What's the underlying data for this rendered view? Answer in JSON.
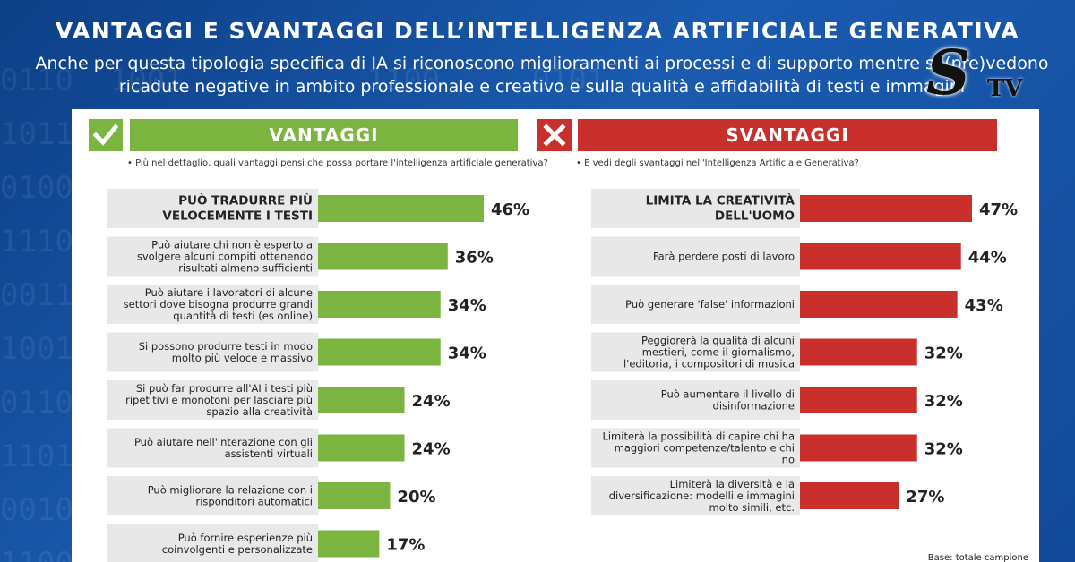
{
  "title": "VANTAGGI E SVANTAGGI DELL’INTELLIGENZA ARTIFICIALE GENERATIVA",
  "subtitle": "Anche per questa tipologia specifica di IA si riconoscono miglioramenti ai processi e di supporto mentre si (pre)vedono ricadute negative in ambito professionale e creativo e sulla qualità e affidabilità di testi e immagini",
  "logo_text": "STV",
  "colors": {
    "advantage": "#7cb440",
    "disadvantage": "#c9302c",
    "label_bg": "#e8e8e8"
  },
  "advantages": {
    "header": "VANTAGGI",
    "question": "Più nel dettaglio, quali vantaggi pensi che possa portare l'intelligenza artificiale generativa?"
  },
  "disadvantages": {
    "header": "SVANTAGGI",
    "question": "E vedi degli svantaggi nell'Intelligenza Artificiale Generativa?"
  },
  "footnote": "Base: totale campione",
  "chart_data": [
    {
      "type": "bar",
      "orientation": "horizontal",
      "title": "VANTAGGI",
      "categories": [
        [
          "PUÒ TRADURRE PIÙ",
          "VELOCEMENTE I TESTI"
        ],
        [
          "Può aiutare chi non è esperto a",
          "svolgere alcuni compiti ottenendo",
          "risultati almeno sufficienti"
        ],
        [
          "Può aiutare i lavoratori di alcune",
          "settori dove bisogna produrre grandi",
          "quantità di testi (es online)"
        ],
        [
          "Si possono produrre testi in modo",
          "molto più veloce e massivo"
        ],
        [
          "Si può far produrre all'AI i testi più",
          "ripetitivi e monotoni per lasciare più",
          "spazio alla creatività"
        ],
        [
          "Può aiutare nell'interazione con gli",
          "assistenti virtuali"
        ],
        [
          "Può migliorare la relazione con i",
          "risponditori automatici"
        ],
        [
          "Può fornire esperienze più",
          "coinvolgenti e personalizzate"
        ]
      ],
      "values": [
        46,
        36,
        34,
        34,
        24,
        24,
        20,
        17
      ],
      "value_labels": [
        "46%",
        "36%",
        "34%",
        "34%",
        "24%",
        "24%",
        "20%",
        "17%"
      ],
      "highlight_index": 0
    },
    {
      "type": "bar",
      "orientation": "horizontal",
      "title": "SVANTAGGI",
      "categories": [
        [
          "LIMITA LA CREATIVITÀ",
          "DELL'UOMO"
        ],
        [
          "Farà perdere posti di lavoro"
        ],
        [
          "Può generare 'false' informazioni"
        ],
        [
          "Peggiorerà la qualità di alcuni",
          "mestieri, come il giornalismo,",
          "l'editoria, i compositori di musica"
        ],
        [
          "Può aumentare il livello di",
          "disinformazione"
        ],
        [
          "Limiterà la possibilità di capire chi ha",
          "maggiori competenze/talento e chi",
          "no"
        ],
        [
          "Limiterà la diversità e la",
          "diversificazione: modelli e immagini",
          "molto simili, etc."
        ]
      ],
      "values": [
        47,
        44,
        43,
        32,
        32,
        32,
        27
      ],
      "value_labels": [
        "47%",
        "44%",
        "43%",
        "32%",
        "32%",
        "32%",
        "27%"
      ],
      "highlight_index": 0
    }
  ]
}
